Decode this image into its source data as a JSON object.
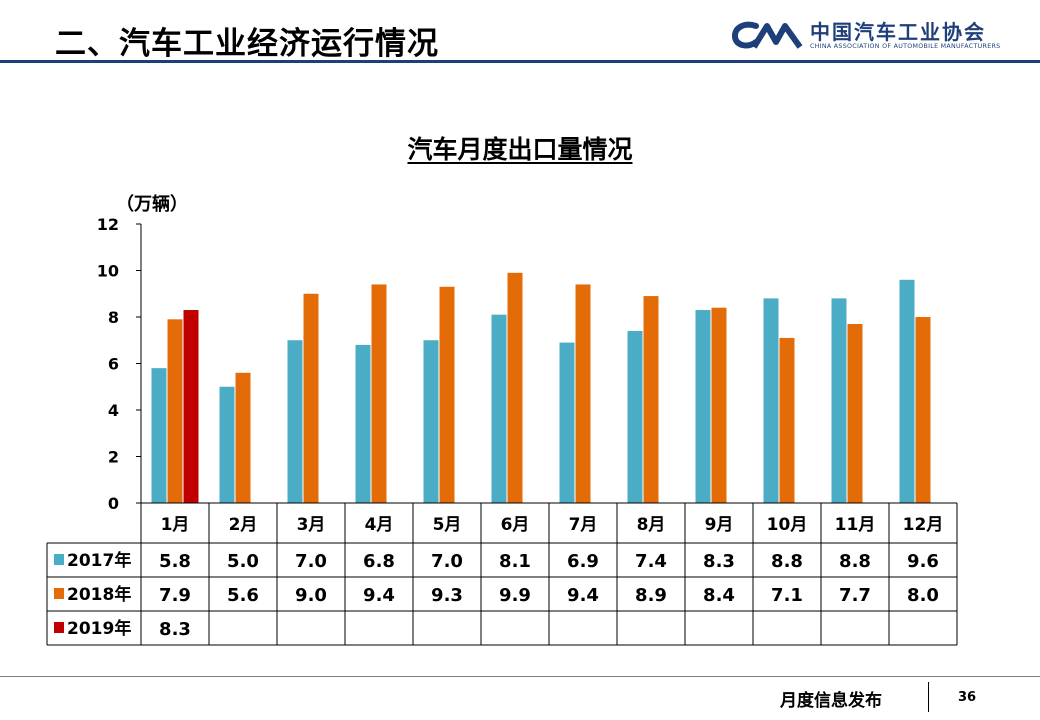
{
  "header": {
    "title": "二、汽车工业经济运行情况",
    "logo_cn": "中国汽车工业协会",
    "logo_en": "CHINA ASSOCIATION OF AUTOMOBILE MANUFACTURERS",
    "accent": "#1f3f7a"
  },
  "chart_data": {
    "type": "bar",
    "title": "汽车月度出口量情况",
    "ylabel": "（万辆）",
    "ylim": [
      0,
      12
    ],
    "yticks": [
      0,
      2,
      4,
      6,
      8,
      10,
      12
    ],
    "grid": false,
    "legend": "data-table-left",
    "categories": [
      "1月",
      "2月",
      "3月",
      "4月",
      "5月",
      "6月",
      "7月",
      "8月",
      "9月",
      "10月",
      "11月",
      "12月"
    ],
    "series": [
      {
        "name": "2017年",
        "color": "#4bacc6",
        "values": [
          5.8,
          5.0,
          7.0,
          6.8,
          7.0,
          8.1,
          6.9,
          7.4,
          8.3,
          8.8,
          8.8,
          9.6
        ],
        "labels": [
          "5.8",
          "5.0",
          "7.0",
          "6.8",
          "7.0",
          "8.1",
          "6.9",
          "7.4",
          "8.3",
          "8.8",
          "8.8",
          "9.6"
        ]
      },
      {
        "name": "2018年",
        "color": "#e36c09",
        "values": [
          7.9,
          5.6,
          9.0,
          9.4,
          9.3,
          9.9,
          9.4,
          8.9,
          8.4,
          7.1,
          7.7,
          8.0
        ],
        "labels": [
          "7.9",
          "5.6",
          "9.0",
          "9.4",
          "9.3",
          "9.9",
          "9.4",
          "8.9",
          "8.4",
          "7.1",
          "7.7",
          "8.0"
        ]
      },
      {
        "name": "2019年",
        "color": "#c00000",
        "values": [
          8.3,
          null,
          null,
          null,
          null,
          null,
          null,
          null,
          null,
          null,
          null,
          null
        ],
        "labels": [
          "8.3",
          "",
          "",
          "",
          "",
          "",
          "",
          "",
          "",
          "",
          "",
          ""
        ]
      }
    ]
  },
  "footer": {
    "text": "月度信息发布",
    "page": "36"
  }
}
